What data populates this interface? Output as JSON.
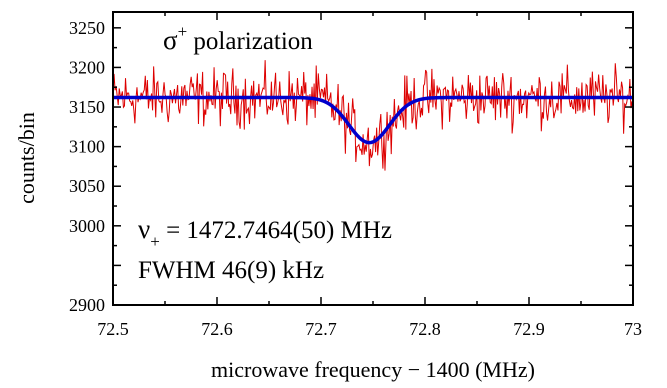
{
  "chart_data": {
    "type": "line",
    "xlabel": "microwave frequency − 1400 (MHz)",
    "ylabel": "counts/bin",
    "xlim": [
      72.5,
      73.0
    ],
    "ylim": [
      2900,
      3270
    ],
    "x_ticks": [
      "72.5",
      "72.6",
      "72.7",
      "72.8",
      "72.9",
      "73"
    ],
    "y_ticks": [
      "2900",
      "3000",
      "3050",
      "3100",
      "3150",
      "3200",
      "3250"
    ],
    "grid": false,
    "legend": "none",
    "annotations": {
      "title_symbol": "σ",
      "title_sup": "+",
      "title_text": " polarization",
      "nu_symbol": "ν",
      "nu_sub": "+",
      "nu_text": " = 1472.7464(50) MHz",
      "fwhm_text": "FWHM 46(9) kHz"
    },
    "series": [
      {
        "kind": "noisy-data",
        "color": "#dd0000",
        "baseline": 3162,
        "noise_amplitude": 22,
        "points": 500
      },
      {
        "kind": "gaussian-fit",
        "color": "#0000cc",
        "baseline": 3162,
        "center": 72.7464,
        "fwhm": 0.046,
        "depth": 57
      }
    ],
    "colors": {
      "data": "#dd0000",
      "fit": "#0000cc",
      "axes": "#000000"
    }
  }
}
